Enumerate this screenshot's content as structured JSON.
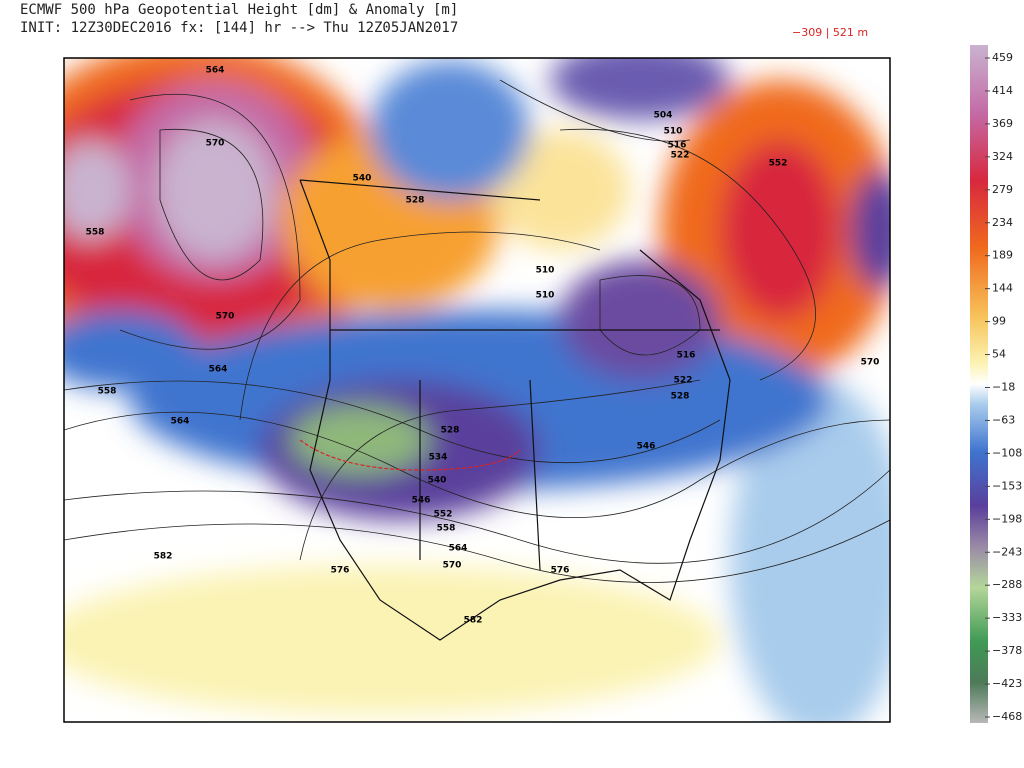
{
  "header": {
    "title": "ECMWF 500 hPa Geopotential Height [dm] & Anomaly [m]",
    "subtitle": "INIT: 12Z30DEC2016 fx: [144] hr --> Thu 12Z05JAN2017",
    "range": "−309 | 521 m"
  },
  "colorbar": {
    "ticks": [
      "459",
      "414",
      "369",
      "324",
      "279",
      "234",
      "189",
      "144",
      "99",
      "54",
      "−18",
      "−63",
      "−108",
      "−153",
      "−198",
      "−243",
      "−288",
      "−333",
      "−378",
      "−423",
      "−468"
    ]
  },
  "contour_labels": [
    "564",
    "570",
    "558",
    "570",
    "564",
    "558",
    "564",
    "582",
    "576",
    "570",
    "564",
    "558",
    "552",
    "546",
    "540",
    "534",
    "528",
    "510",
    "510",
    "528",
    "540",
    "504",
    "510",
    "516",
    "522",
    "552",
    "516",
    "522",
    "528",
    "546",
    "570",
    "576",
    "582"
  ]
}
